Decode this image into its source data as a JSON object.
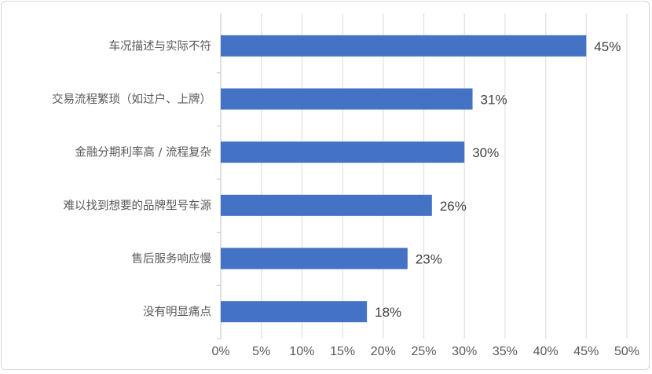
{
  "chart_data": {
    "type": "bar",
    "orientation": "horizontal",
    "categories": [
      "车况描述与实际不符",
      "交易流程繁琐（如过户、上牌）",
      "金融分期利率高 / 流程复杂",
      "难以找到想要的品牌型号车源",
      "售后服务响应慢",
      "没有明显痛点"
    ],
    "values": [
      45,
      31,
      30,
      26,
      23,
      18
    ],
    "value_labels": [
      "45%",
      "31%",
      "30%",
      "26%",
      "23%",
      "18%"
    ],
    "xlim": [
      0,
      50
    ],
    "x_ticks": [
      "0%",
      "5%",
      "10%",
      "15%",
      "20%",
      "25%",
      "30%",
      "35%",
      "40%",
      "45%",
      "50%"
    ],
    "title": "",
    "xlabel": "",
    "ylabel": "",
    "grid": "vertical",
    "legend": "none",
    "bar_color": "#4472C4"
  }
}
